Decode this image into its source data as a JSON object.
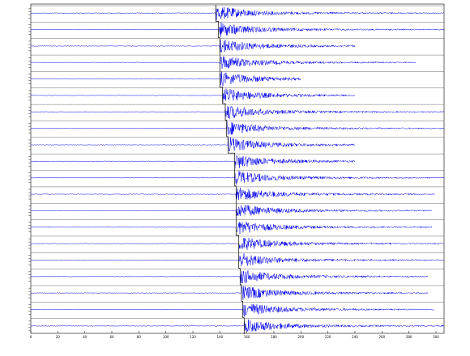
{
  "chart_data": {
    "type": "record-section",
    "xlim": [
      0,
      306
    ],
    "xticks": [
      0,
      20,
      40,
      60,
      80,
      100,
      120,
      140,
      160,
      180,
      200,
      220,
      240,
      260,
      280,
      300
    ],
    "color": "#0000ee",
    "traces": [
      {
        "onset": 137,
        "end": 306
      },
      {
        "onset": 139,
        "end": 306
      },
      {
        "onset": 140,
        "end": 240
      },
      {
        "onset": 140,
        "end": 285
      },
      {
        "onset": 140,
        "end": 200
      },
      {
        "onset": 142,
        "end": 240
      },
      {
        "onset": 144,
        "end": 306
      },
      {
        "onset": 145,
        "end": 306
      },
      {
        "onset": 146,
        "end": 240
      },
      {
        "onset": 151,
        "end": 240
      },
      {
        "onset": 151,
        "end": 306
      },
      {
        "onset": 152,
        "end": 299
      },
      {
        "onset": 152,
        "end": 297
      },
      {
        "onset": 152,
        "end": 297
      },
      {
        "onset": 154,
        "end": 306
      },
      {
        "onset": 154,
        "end": 306
      },
      {
        "onset": 155,
        "end": 294
      },
      {
        "onset": 156,
        "end": 294
      },
      {
        "onset": 157,
        "end": 299
      },
      {
        "onset": 158,
        "end": 306
      }
    ]
  }
}
